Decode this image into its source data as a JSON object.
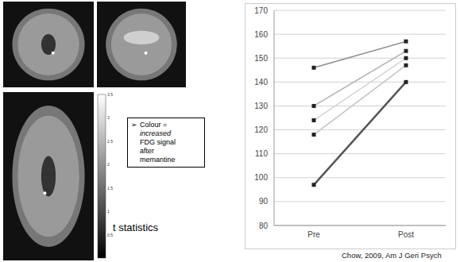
{
  "chart_data": {
    "type": "line",
    "categories": [
      "Pre",
      "Post"
    ],
    "series": [
      {
        "color": "#8c8c8c",
        "values": [
          146,
          157
        ]
      },
      {
        "color": "#b0b0b0",
        "values": [
          130,
          153
        ]
      },
      {
        "color": "#c4c4c4",
        "values": [
          118,
          147
        ]
      },
      {
        "color": "#d2d2d2",
        "values": [
          124,
          150
        ]
      },
      {
        "color": "#555555",
        "values": [
          97,
          140
        ]
      }
    ],
    "ylim": [
      80,
      170
    ],
    "yticks": [
      80,
      90,
      100,
      110,
      120,
      130,
      140,
      150,
      160,
      170
    ],
    "grid": true,
    "marker": "square",
    "line_style": "solid"
  },
  "colorbar": {
    "label": "t statistics",
    "range": [
      0,
      3.5
    ],
    "ticks": [
      0.5,
      1,
      1.5,
      2,
      2.5,
      3,
      3.5
    ]
  },
  "annotation": {
    "bullet": "➢",
    "lines": [
      "Colour =",
      "increased",
      "FDG signal",
      "after",
      "memantine"
    ]
  },
  "citation": "Chow, 2009, Am J Geri Psych"
}
